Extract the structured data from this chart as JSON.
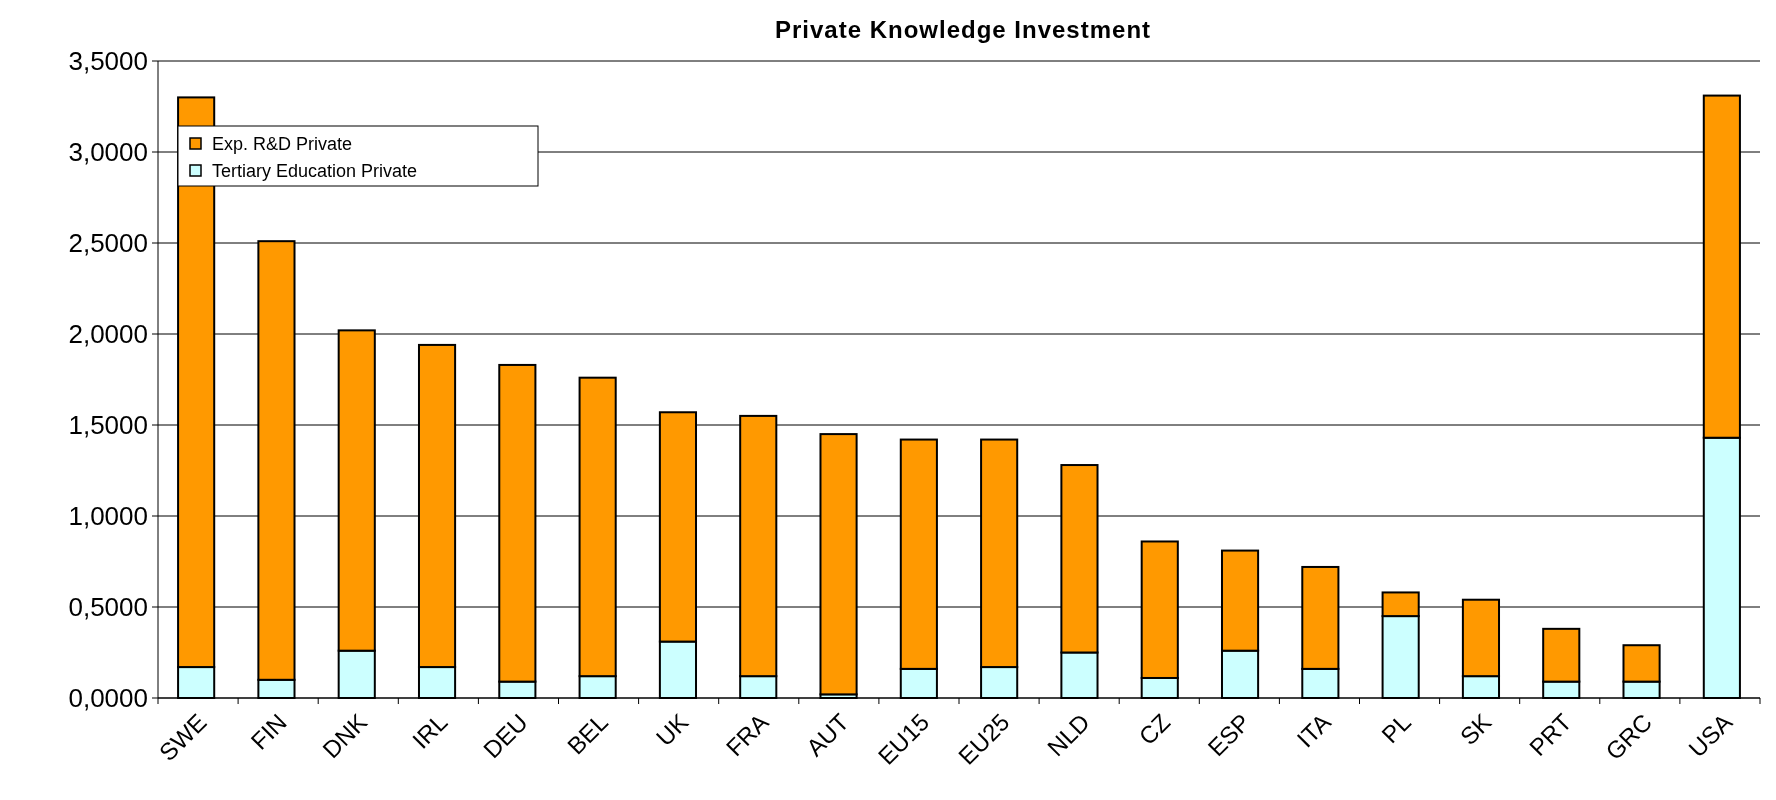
{
  "chart_data": {
    "type": "bar",
    "title": "Private Knowledge Investment",
    "stacked": true,
    "categories": [
      "SWE",
      "FIN",
      "DNK",
      "IRL",
      "DEU",
      "BEL",
      "UK",
      "FRA",
      "AUT",
      "EU15",
      "EU25",
      "NLD",
      "CZ",
      "ESP",
      "ITA",
      "PL",
      "SK",
      "PRT",
      "GRC",
      "USA"
    ],
    "series": [
      {
        "name": "Tertiary Education Private",
        "color": "#ccffff",
        "values": [
          0.17,
          0.1,
          0.26,
          0.17,
          0.09,
          0.12,
          0.31,
          0.12,
          0.02,
          0.16,
          0.17,
          0.25,
          0.11,
          0.26,
          0.16,
          0.45,
          0.12,
          0.09,
          0.09,
          1.43
        ]
      },
      {
        "name": "Exp. R&D Private",
        "color": "#ff9900",
        "values": [
          3.13,
          2.41,
          1.76,
          1.77,
          1.74,
          1.64,
          1.26,
          1.43,
          1.43,
          1.26,
          1.25,
          1.03,
          0.75,
          0.55,
          0.56,
          0.13,
          0.42,
          0.29,
          0.2,
          1.88
        ]
      }
    ],
    "ylim": [
      0,
      3.5
    ],
    "yticks": [
      {
        "value": 0,
        "label": "0,0000"
      },
      {
        "value": 0.5,
        "label": "0,5000"
      },
      {
        "value": 1,
        "label": "1,0000"
      },
      {
        "value": 1.5,
        "label": "1,5000"
      },
      {
        "value": 2,
        "label": "2,0000"
      },
      {
        "value": 2.5,
        "label": "2,5000"
      },
      {
        "value": 3,
        "label": "3,0000"
      },
      {
        "value": 3.5,
        "label": "3,5000"
      }
    ],
    "grid": "y",
    "legend": "top left"
  }
}
